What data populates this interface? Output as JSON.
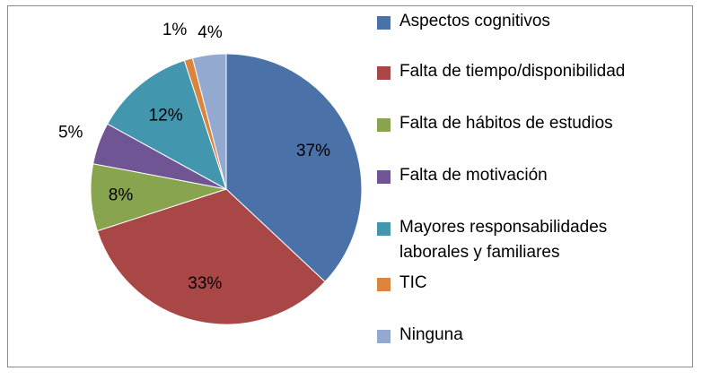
{
  "chart_data": {
    "type": "pie",
    "categories": [
      "Aspectos cognitivos",
      "Falta de tiempo/disponibilidad",
      "Falta de hábitos de estudios",
      "Falta de motivación",
      "Mayores responsabilidades laborales y familiares",
      "TIC",
      "Ninguna"
    ],
    "values": [
      37,
      33,
      8,
      5,
      12,
      1,
      4
    ],
    "labels": [
      "37%",
      "33%",
      "8%",
      "5%",
      "12%",
      "1%",
      "4%"
    ],
    "colors": [
      "#4a72a8",
      "#a84745",
      "#88a44f",
      "#6f5594",
      "#4296ad",
      "#db843d",
      "#93a9cf"
    ],
    "legend_position": "right"
  }
}
